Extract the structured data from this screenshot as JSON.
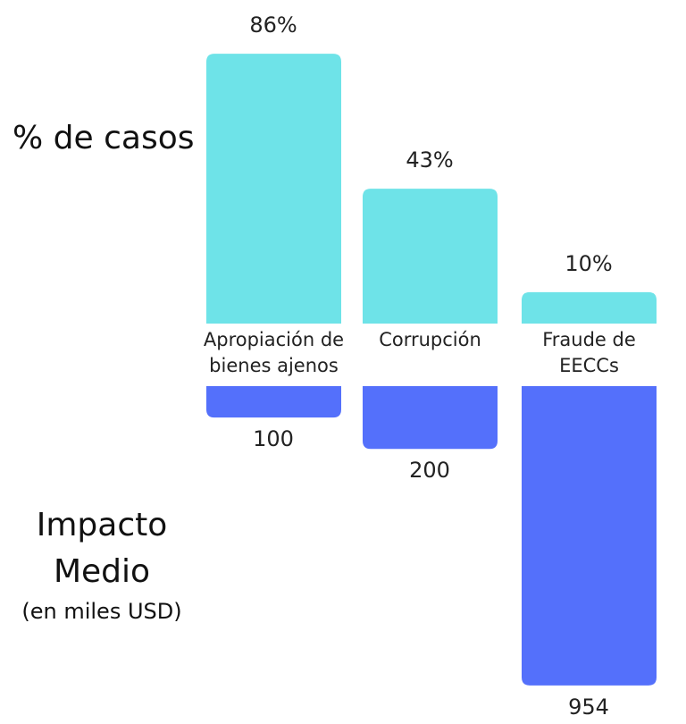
{
  "chart_data": {
    "type": "bar",
    "categories": [
      "Apropiación de bienes ajenos",
      "Corrupción",
      "Fraude de EECCs"
    ],
    "series": [
      {
        "name": "% de casos",
        "color": "#6ee3e8",
        "values": [
          86,
          43,
          10
        ],
        "value_labels": [
          "86%",
          "43%",
          "10%"
        ]
      },
      {
        "name": "Impacto Medio",
        "subtitle": "(en miles USD)",
        "color": "#5470fb",
        "values": [
          100,
          200,
          954
        ],
        "axis": "y2"
      }
    ],
    "ylim": [
      0,
      100
    ],
    "y2lim": [
      0,
      1000
    ]
  }
}
